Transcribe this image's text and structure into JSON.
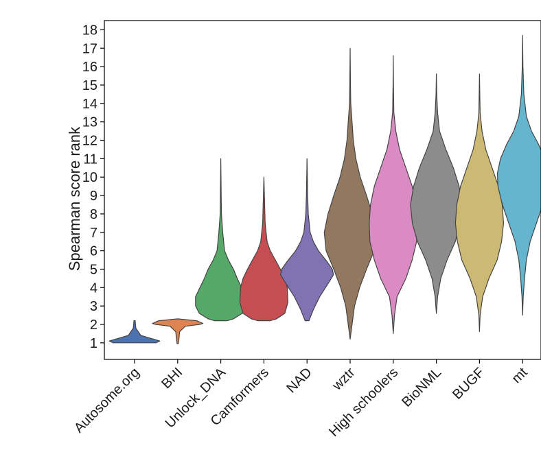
{
  "chart_data": {
    "type": "violin",
    "ylabel": "Spearman score rank",
    "ylim": [
      0.1,
      18.5
    ],
    "yticks": [
      1,
      2,
      3,
      4,
      5,
      6,
      7,
      8,
      9,
      10,
      11,
      12,
      13,
      14,
      15,
      16,
      17,
      18
    ],
    "grid": false,
    "categories": [
      "Autosome.org",
      "BHI",
      "Unlock_DNA",
      "Camformers",
      "NAD",
      "wztr",
      "High schoolers",
      "BioNML",
      "BUGF",
      "mt"
    ],
    "series": [
      {
        "color": "#4c72b0",
        "profile": [
          [
            1,
            0.34
          ],
          [
            1.1,
            0.4
          ],
          [
            1.2,
            0.3
          ],
          [
            1.4,
            0.1
          ],
          [
            1.8,
            0.02
          ],
          [
            2.2,
            0.01
          ]
        ]
      },
      {
        "color": "#dd8452",
        "profile": [
          [
            0.95,
            0.01
          ],
          [
            1.2,
            0.02
          ],
          [
            1.6,
            0.03
          ],
          [
            1.9,
            0.12
          ],
          [
            2.0,
            0.35
          ],
          [
            2.05,
            0.4
          ],
          [
            2.2,
            0.3
          ],
          [
            2.3,
            0.0
          ]
        ]
      },
      {
        "color": "#55a868",
        "profile": [
          [
            2.2,
            0.1
          ],
          [
            2.3,
            0.2
          ],
          [
            2.6,
            0.34
          ],
          [
            3.0,
            0.4
          ],
          [
            3.5,
            0.4
          ],
          [
            4.0,
            0.33
          ],
          [
            4.5,
            0.26
          ],
          [
            5.0,
            0.2
          ],
          [
            5.5,
            0.12
          ],
          [
            6.0,
            0.06
          ],
          [
            7.0,
            0.03
          ],
          [
            8.0,
            0.01
          ],
          [
            11.0,
            0.0
          ]
        ]
      },
      {
        "color": "#c44e52",
        "profile": [
          [
            2.2,
            0.1
          ],
          [
            2.3,
            0.2
          ],
          [
            2.6,
            0.33
          ],
          [
            3.2,
            0.38
          ],
          [
            4.0,
            0.37
          ],
          [
            4.5,
            0.33
          ],
          [
            5.0,
            0.26
          ],
          [
            5.5,
            0.18
          ],
          [
            6.0,
            0.1
          ],
          [
            6.5,
            0.05
          ],
          [
            7.5,
            0.02
          ],
          [
            10.0,
            0.0
          ]
        ]
      },
      {
        "color": "#8172b3",
        "profile": [
          [
            2.2,
            0.03
          ],
          [
            2.8,
            0.1
          ],
          [
            3.5,
            0.2
          ],
          [
            4.2,
            0.33
          ],
          [
            4.7,
            0.42
          ],
          [
            5.0,
            0.4
          ],
          [
            5.4,
            0.32
          ],
          [
            6.0,
            0.18
          ],
          [
            6.5,
            0.1
          ],
          [
            7.0,
            0.05
          ],
          [
            8.0,
            0.02
          ],
          [
            9.0,
            0.01
          ],
          [
            11.0,
            0.0
          ]
        ]
      },
      {
        "color": "#937860",
        "profile": [
          [
            1.2,
            0.0
          ],
          [
            2.0,
            0.03
          ],
          [
            3.0,
            0.07
          ],
          [
            4.0,
            0.15
          ],
          [
            5.0,
            0.26
          ],
          [
            6.0,
            0.38
          ],
          [
            7.0,
            0.41
          ],
          [
            8.0,
            0.35
          ],
          [
            9.0,
            0.26
          ],
          [
            10.0,
            0.16
          ],
          [
            11.0,
            0.09
          ],
          [
            12.0,
            0.05
          ],
          [
            13.0,
            0.03
          ],
          [
            14.0,
            0.01
          ],
          [
            15.0,
            0.005
          ],
          [
            17.0,
            0.0
          ]
        ]
      },
      {
        "color": "#da8bc3",
        "profile": [
          [
            1.5,
            0.0
          ],
          [
            2.5,
            0.02
          ],
          [
            3.5,
            0.06
          ],
          [
            4.5,
            0.2
          ],
          [
            5.5,
            0.3
          ],
          [
            6.5,
            0.37
          ],
          [
            7.5,
            0.38
          ],
          [
            8.5,
            0.36
          ],
          [
            9.5,
            0.3
          ],
          [
            10.5,
            0.2
          ],
          [
            11.5,
            0.1
          ],
          [
            12.5,
            0.04
          ],
          [
            13.5,
            0.01
          ],
          [
            15.0,
            0.003
          ],
          [
            16.6,
            0.0
          ]
        ]
      },
      {
        "color": "#8c8c8c",
        "profile": [
          [
            2.6,
            0.0
          ],
          [
            3.5,
            0.02
          ],
          [
            4.5,
            0.07
          ],
          [
            5.5,
            0.17
          ],
          [
            6.5,
            0.3
          ],
          [
            7.5,
            0.38
          ],
          [
            8.5,
            0.41
          ],
          [
            9.5,
            0.36
          ],
          [
            10.5,
            0.27
          ],
          [
            11.5,
            0.15
          ],
          [
            12.5,
            0.05
          ],
          [
            13.5,
            0.02
          ],
          [
            14.5,
            0.005
          ],
          [
            15.6,
            0.0
          ]
        ]
      },
      {
        "color": "#ccb974",
        "profile": [
          [
            1.6,
            0.0
          ],
          [
            2.5,
            0.01
          ],
          [
            3.5,
            0.05
          ],
          [
            4.5,
            0.15
          ],
          [
            5.5,
            0.28
          ],
          [
            6.5,
            0.35
          ],
          [
            7.5,
            0.38
          ],
          [
            8.5,
            0.36
          ],
          [
            9.5,
            0.3
          ],
          [
            10.5,
            0.2
          ],
          [
            11.5,
            0.1
          ],
          [
            12.5,
            0.04
          ],
          [
            13.5,
            0.01
          ],
          [
            15.6,
            0.0
          ]
        ]
      },
      {
        "color": "#64b5cd",
        "profile": [
          [
            2.5,
            0.0
          ],
          [
            3.5,
            0.01
          ],
          [
            4.5,
            0.03
          ],
          [
            5.5,
            0.06
          ],
          [
            6.5,
            0.12
          ],
          [
            7.5,
            0.22
          ],
          [
            8.5,
            0.32
          ],
          [
            9.5,
            0.39
          ],
          [
            10.2,
            0.4
          ],
          [
            11.0,
            0.35
          ],
          [
            11.8,
            0.25
          ],
          [
            12.5,
            0.14
          ],
          [
            13.3,
            0.06
          ],
          [
            14.5,
            0.02
          ],
          [
            16.0,
            0.005
          ],
          [
            17.7,
            0.0
          ]
        ]
      }
    ]
  }
}
